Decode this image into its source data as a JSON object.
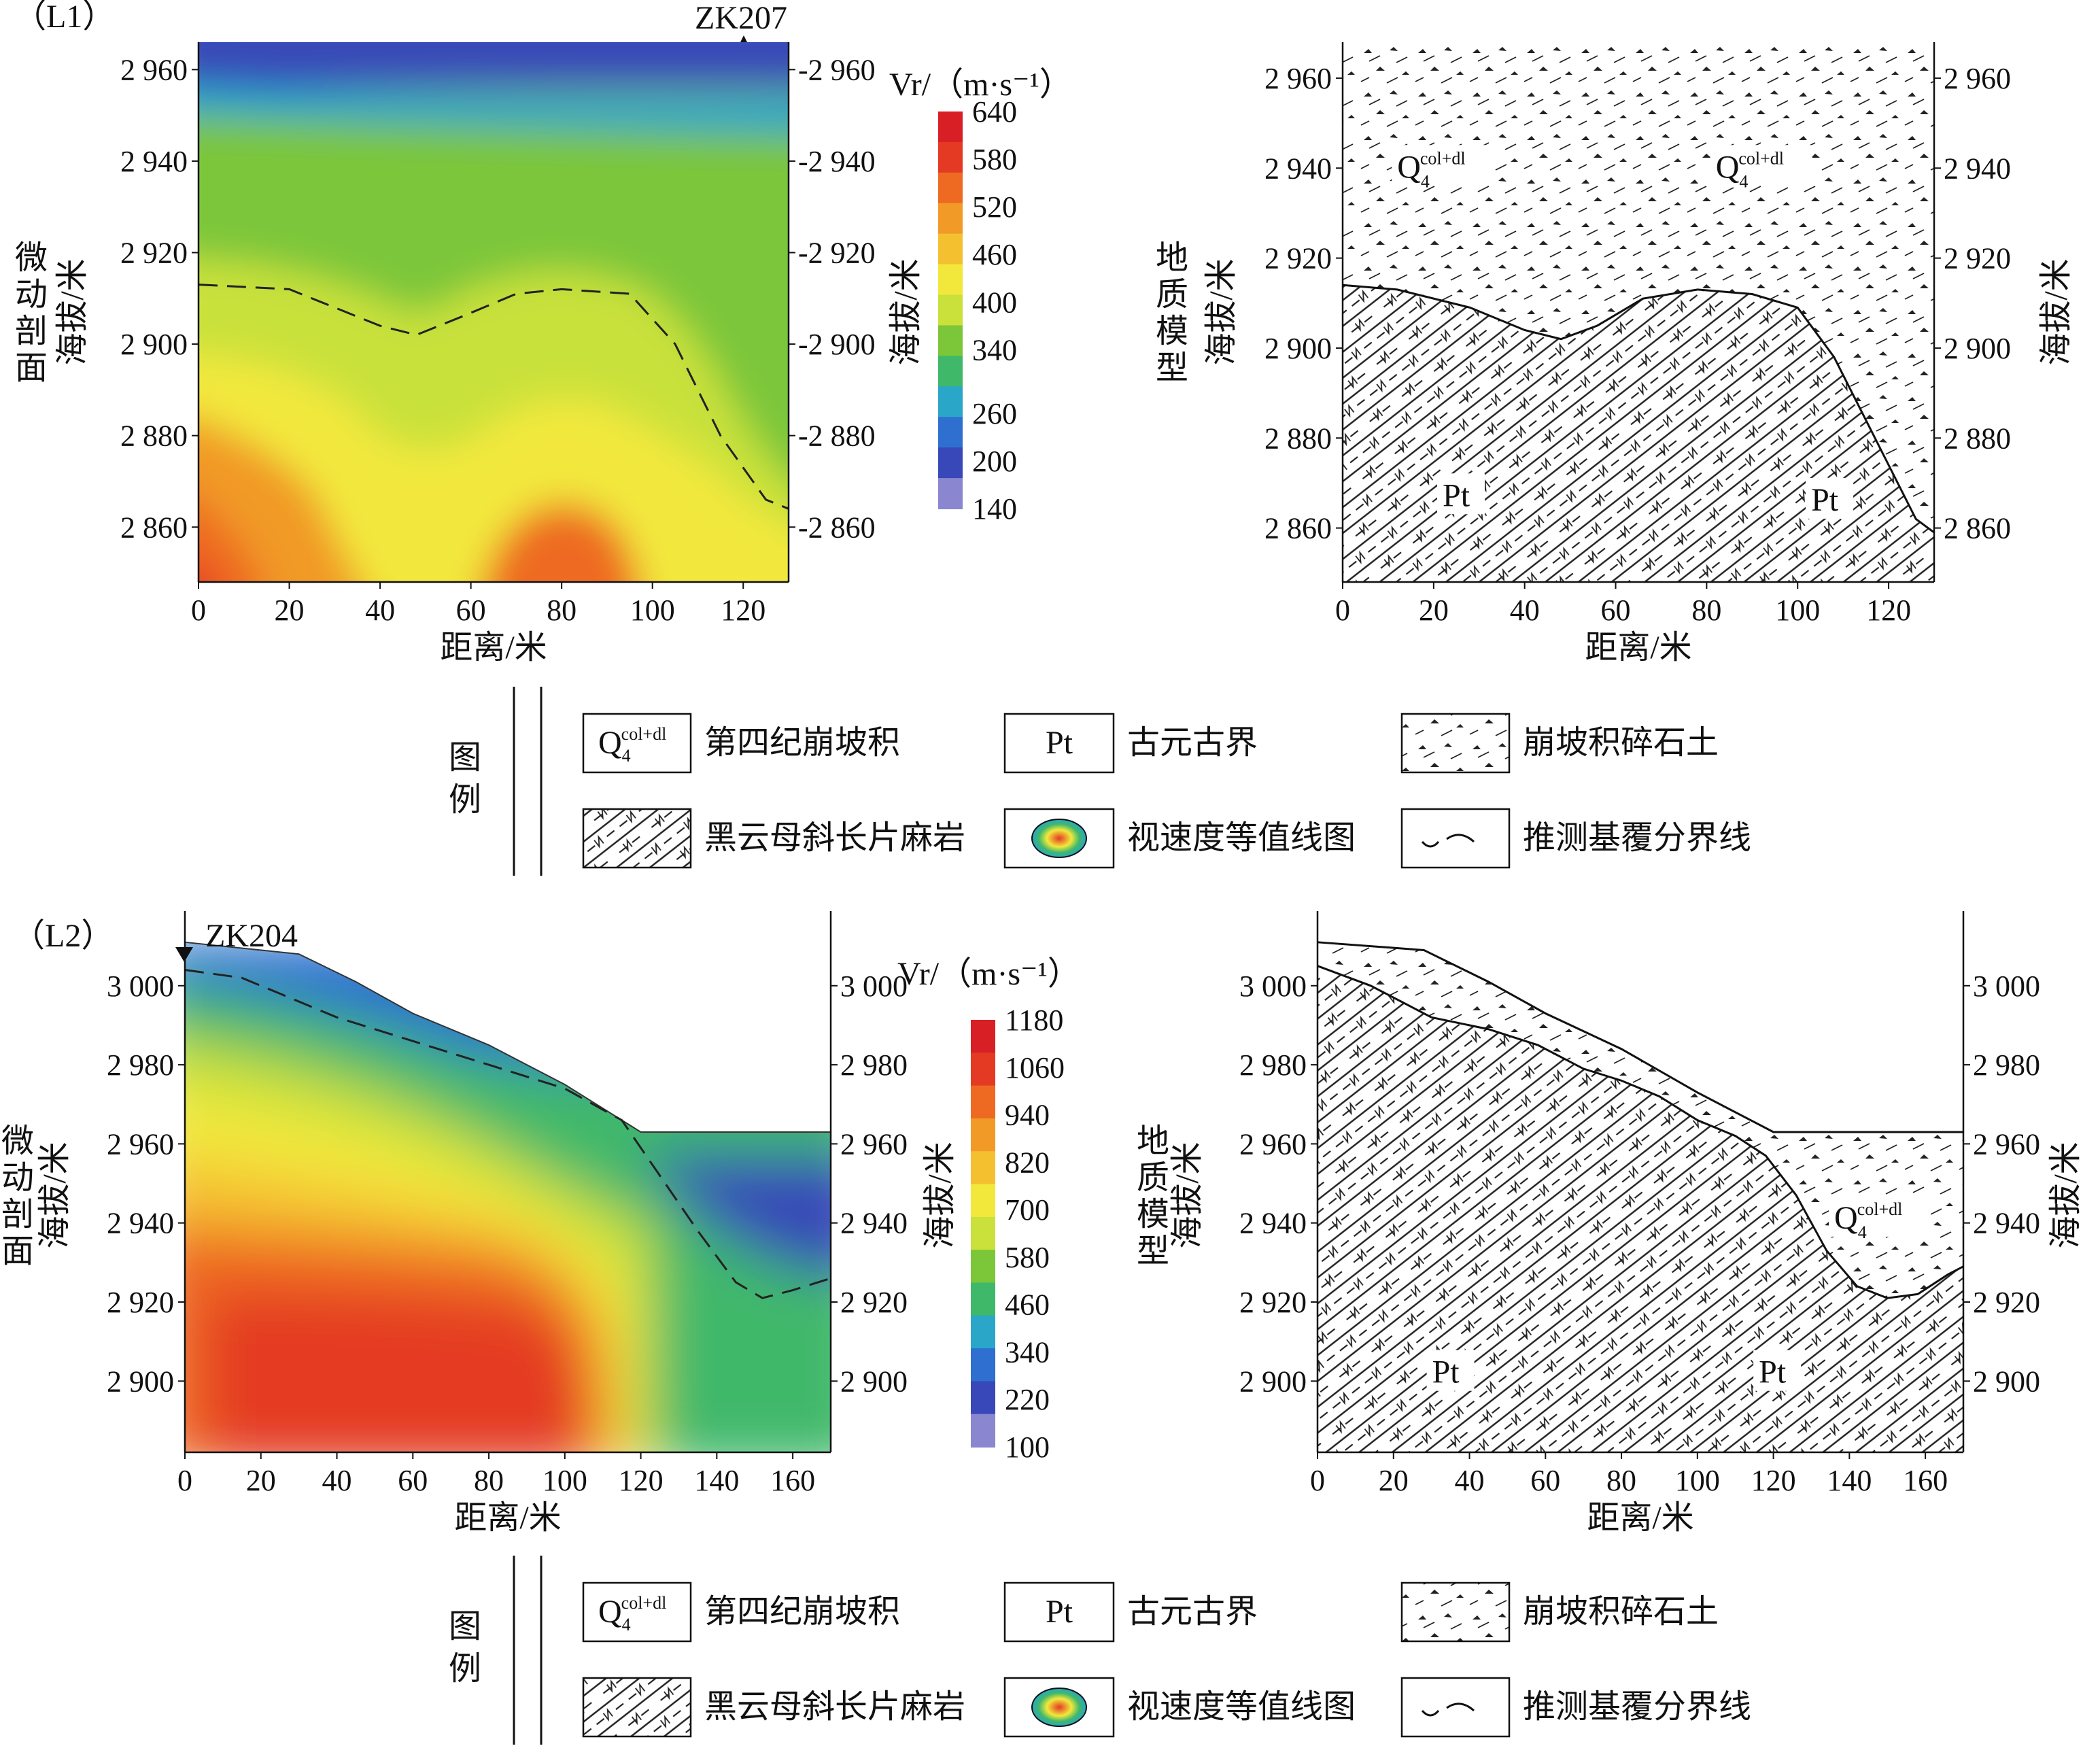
{
  "colors": {
    "scale": [
      "#8a86d0",
      "#3848b8",
      "#2f6fd0",
      "#2aa6c8",
      "#3fb86a",
      "#7cc63a",
      "#c9e13a",
      "#f2e83c",
      "#f5c030",
      "#f19a28",
      "#ee6a22",
      "#e43a24",
      "#d81f26"
    ],
    "rock_hatch": "#222222"
  },
  "legend": {
    "title": "图例",
    "items": [
      {
        "key": "q4",
        "symbol_text": "Q",
        "symbol_sub": "4",
        "symbol_sup": "col+dl",
        "label": "第四纪崩坡积"
      },
      {
        "key": "pt",
        "symbol_text": "Pt",
        "label": "古元古界"
      },
      {
        "key": "rubble",
        "label": "崩坡积碎石土"
      },
      {
        "key": "gneiss",
        "label": "黑云母斜长片麻岩"
      },
      {
        "key": "contour",
        "label": "视速度等值线图"
      },
      {
        "key": "boundary",
        "label": "推测基覆分界线"
      }
    ]
  },
  "chart_data": [
    {
      "type": "heatmap",
      "section": "（L1）",
      "borehole": "ZK207",
      "title_left": "微动剖面",
      "ylabel": "海拔/米",
      "ylabel_right": "海拔/米",
      "xlabel": "距离/米",
      "xlim": [
        0,
        130
      ],
      "ylim": [
        2848,
        2966
      ],
      "x_ticks": [
        0,
        20,
        40,
        60,
        80,
        100,
        120
      ],
      "y_ticks": [
        2960,
        2940,
        2920,
        2900,
        2880,
        2860
      ],
      "y_tick_labels": [
        "2 960",
        "2 940",
        "2 920",
        "2 900",
        "2 880",
        "2 860"
      ],
      "colorbar": {
        "title": "Vr/（m·s⁻¹）",
        "min": 140,
        "max": 640,
        "ticks": [
          640,
          580,
          520,
          460,
          400,
          340,
          260,
          200,
          140
        ]
      },
      "boundary_line": [
        [
          0,
          2913
        ],
        [
          20,
          2912
        ],
        [
          40,
          2904
        ],
        [
          48,
          2902
        ],
        [
          58,
          2906
        ],
        [
          70,
          2911
        ],
        [
          80,
          2912
        ],
        [
          95,
          2911
        ],
        [
          105,
          2900
        ],
        [
          115,
          2880
        ],
        [
          125,
          2866
        ],
        [
          130,
          2864
        ]
      ],
      "surface_line": [
        [
          0,
          2966
        ],
        [
          130,
          2966
        ]
      ]
    },
    {
      "type": "section",
      "section": "（L1）",
      "title_left": "地质模型",
      "ylabel": "海拔/米",
      "ylabel_right": "海拔/米",
      "xlabel": "距离/米",
      "xlim": [
        0,
        130
      ],
      "ylim": [
        2848,
        2968
      ],
      "x_ticks": [
        0,
        20,
        40,
        60,
        80,
        100,
        120
      ],
      "y_ticks": [
        2960,
        2940,
        2920,
        2900,
        2880,
        2860
      ],
      "y_tick_labels": [
        "2 960",
        "2 940",
        "2 920",
        "2 900",
        "2 880",
        "2 860"
      ],
      "annotations": [
        {
          "text": "Q",
          "sub": "4",
          "sup": "col+dl",
          "at": [
            22,
            2940
          ]
        },
        {
          "text": "Q",
          "sub": "4",
          "sup": "col+dl",
          "at": [
            92,
            2940
          ]
        },
        {
          "text": "Pt",
          "at": [
            26,
            2867
          ]
        },
        {
          "text": "Pt",
          "at": [
            107,
            2866
          ]
        }
      ],
      "boundary_line": [
        [
          0,
          2914
        ],
        [
          12,
          2913
        ],
        [
          28,
          2909
        ],
        [
          40,
          2904
        ],
        [
          48,
          2902
        ],
        [
          56,
          2905
        ],
        [
          66,
          2911
        ],
        [
          78,
          2913
        ],
        [
          90,
          2912
        ],
        [
          100,
          2909
        ],
        [
          108,
          2898
        ],
        [
          118,
          2878
        ],
        [
          126,
          2862
        ],
        [
          130,
          2859
        ]
      ]
    },
    {
      "type": "heatmap",
      "section": "（L2）",
      "borehole": "ZK204",
      "title_left": "微动剖面",
      "ylabel": "海拔/米",
      "ylabel_right": "海拔/米",
      "xlabel": "距离/米",
      "xlim": [
        0,
        170
      ],
      "ylim": [
        2882,
        3012
      ],
      "x_ticks": [
        0,
        20,
        40,
        60,
        80,
        100,
        120,
        140,
        160
      ],
      "y_ticks": [
        3000,
        2980,
        2960,
        2940,
        2920,
        2900
      ],
      "y_tick_labels": [
        "3 000",
        "2 980",
        "2 960",
        "2 940",
        "2 920",
        "2 900"
      ],
      "colorbar": {
        "title": "Vr/（m·s⁻¹）",
        "min": 100,
        "max": 1180,
        "ticks": [
          1180,
          1060,
          940,
          820,
          700,
          580,
          460,
          340,
          220,
          100
        ]
      },
      "surface_line": [
        [
          0,
          3011
        ],
        [
          30,
          3008
        ],
        [
          45,
          3001
        ],
        [
          60,
          2993
        ],
        [
          80,
          2985
        ],
        [
          100,
          2975
        ],
        [
          120,
          2963
        ],
        [
          170,
          2963
        ]
      ],
      "boundary_line": [
        [
          0,
          3004
        ],
        [
          15,
          3002
        ],
        [
          25,
          2998
        ],
        [
          40,
          2992
        ],
        [
          60,
          2986
        ],
        [
          80,
          2980
        ],
        [
          100,
          2974
        ],
        [
          115,
          2966
        ],
        [
          125,
          2952
        ],
        [
          135,
          2938
        ],
        [
          145,
          2925
        ],
        [
          152,
          2921
        ],
        [
          160,
          2923
        ],
        [
          170,
          2926
        ]
      ]
    },
    {
      "type": "section",
      "section": "（L2）",
      "title_left": "地质模型",
      "ylabel": "海拔/米",
      "ylabel_right": "海拔/米",
      "xlabel": "距离/米",
      "xlim": [
        0,
        170
      ],
      "ylim": [
        2882,
        3012
      ],
      "x_ticks": [
        0,
        20,
        40,
        60,
        80,
        100,
        120,
        140,
        160
      ],
      "y_ticks": [
        3000,
        2980,
        2960,
        2940,
        2920,
        2900
      ],
      "y_tick_labels": [
        "3 000",
        "2 980",
        "2 960",
        "2 940",
        "2 920",
        "2 900"
      ],
      "annotations": [
        {
          "text": "Q",
          "sub": "4",
          "sup": "col+dl",
          "at": [
            148,
            2941
          ]
        },
        {
          "text": "Pt",
          "at": [
            35,
            2902
          ]
        },
        {
          "text": "Pt",
          "at": [
            121,
            2902
          ]
        }
      ],
      "surface_line": [
        [
          0,
          3011
        ],
        [
          28,
          3009
        ],
        [
          45,
          3001
        ],
        [
          60,
          2993
        ],
        [
          80,
          2984
        ],
        [
          100,
          2973
        ],
        [
          120,
          2963
        ],
        [
          170,
          2963
        ]
      ],
      "boundary_line": [
        [
          0,
          3005
        ],
        [
          14,
          3000
        ],
        [
          30,
          2992
        ],
        [
          45,
          2989
        ],
        [
          58,
          2985
        ],
        [
          70,
          2979
        ],
        [
          80,
          2976
        ],
        [
          90,
          2972
        ],
        [
          100,
          2966
        ],
        [
          110,
          2962
        ],
        [
          118,
          2957
        ],
        [
          126,
          2947
        ],
        [
          134,
          2933
        ],
        [
          142,
          2924
        ],
        [
          150,
          2921
        ],
        [
          158,
          2922
        ],
        [
          166,
          2927
        ],
        [
          170,
          2929
        ]
      ]
    }
  ]
}
